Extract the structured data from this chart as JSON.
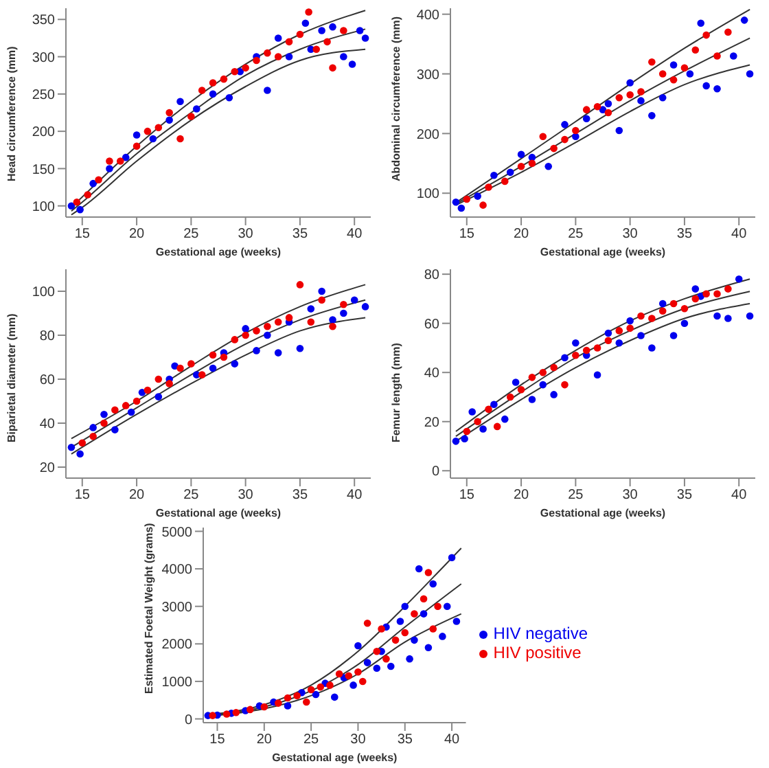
{
  "chart_data": [
    {
      "type": "scatter",
      "xlabel": "Gestational age (weeks)",
      "ylabel": "Head circumference (mm)",
      "xlim": [
        13.5,
        41.5
      ],
      "xticks": [
        15,
        20,
        25,
        30,
        35,
        40
      ],
      "ylim": [
        85,
        365
      ],
      "yticks": [
        100,
        150,
        200,
        250,
        300,
        350
      ],
      "marker": "circle",
      "series": [
        {
          "color": "#0000ee",
          "x": [
            14,
            14.8,
            16,
            17.5,
            19,
            20,
            21.5,
            23,
            24,
            25.5,
            27,
            28.5,
            29.5,
            31,
            32,
            33,
            34,
            35.5,
            36,
            37,
            38,
            39,
            39.8,
            40.5,
            41
          ],
          "values": [
            100,
            95,
            130,
            150,
            165,
            195,
            190,
            215,
            240,
            230,
            250,
            245,
            280,
            300,
            255,
            325,
            300,
            345,
            310,
            335,
            340,
            300,
            290,
            335,
            325
          ]
        },
        {
          "color": "#ee0000",
          "x": [
            14.5,
            15.5,
            16.5,
            17.5,
            18.5,
            20,
            21,
            22,
            23,
            24,
            25,
            26,
            27,
            28,
            29,
            30,
            31,
            32,
            33,
            34,
            35,
            35.8,
            36.5,
            37.5,
            38,
            39
          ],
          "values": [
            105,
            115,
            135,
            160,
            160,
            180,
            200,
            205,
            225,
            190,
            220,
            255,
            265,
            270,
            280,
            285,
            295,
            305,
            300,
            320,
            330,
            360,
            310,
            320,
            285,
            335
          ]
        },
        {
          "type": "line",
          "marker": "none",
          "color": "#333333",
          "x": [
            14,
            15,
            20,
            25,
            30,
            35,
            41
          ],
          "values": [
            98,
            112,
            180,
            240,
            290,
            330,
            362
          ]
        },
        {
          "type": "line",
          "marker": "none",
          "color": "#333333",
          "x": [
            14,
            15,
            20,
            25,
            30,
            35,
            41
          ],
          "values": [
            93,
            105,
            170,
            225,
            275,
            310,
            337
          ]
        },
        {
          "type": "line",
          "marker": "none",
          "color": "#333333",
          "x": [
            14,
            15,
            20,
            25,
            30,
            35,
            41
          ],
          "values": [
            88,
            98,
            160,
            215,
            260,
            295,
            310
          ]
        }
      ]
    },
    {
      "type": "scatter",
      "xlabel": "Gestational age (weeks)",
      "ylabel": "Abdominal circumference (mm)",
      "xlim": [
        13.5,
        41.5
      ],
      "xticks": [
        15,
        20,
        25,
        30,
        35,
        40
      ],
      "ylim": [
        60,
        410
      ],
      "yticks": [
        100,
        200,
        300,
        400
      ],
      "marker": "circle",
      "series": [
        {
          "color": "#0000ee",
          "x": [
            14,
            14.5,
            16,
            17.5,
            19,
            20,
            21,
            22.5,
            24,
            25,
            26,
            27.5,
            28,
            29,
            30,
            31,
            32,
            33,
            34,
            35.5,
            36.5,
            37,
            38,
            39.5,
            40.5,
            41
          ],
          "values": [
            85,
            75,
            95,
            130,
            135,
            165,
            160,
            145,
            215,
            195,
            225,
            240,
            250,
            205,
            285,
            255,
            230,
            260,
            315,
            300,
            385,
            280,
            275,
            330,
            390,
            300
          ]
        },
        {
          "color": "#ee0000",
          "x": [
            15,
            16.5,
            17,
            18.5,
            20,
            21,
            22,
            23,
            24,
            25,
            26,
            27,
            28,
            29,
            30,
            31,
            32,
            33,
            34,
            35,
            36,
            37,
            38,
            39
          ],
          "values": [
            90,
            80,
            110,
            120,
            145,
            150,
            195,
            175,
            190,
            205,
            240,
            245,
            235,
            260,
            265,
            270,
            320,
            300,
            290,
            310,
            340,
            365,
            330,
            370
          ]
        },
        {
          "type": "line",
          "marker": "none",
          "color": "#333333",
          "x": [
            14,
            20,
            25,
            30,
            35,
            41
          ],
          "values": [
            84,
            158,
            220,
            283,
            343,
            408
          ]
        },
        {
          "type": "line",
          "marker": "none",
          "color": "#333333",
          "x": [
            14,
            20,
            25,
            30,
            35,
            41
          ],
          "values": [
            82,
            145,
            200,
            255,
            305,
            360
          ]
        },
        {
          "type": "line",
          "marker": "none",
          "color": "#333333",
          "x": [
            14,
            20,
            25,
            30,
            35,
            41
          ],
          "values": [
            80,
            135,
            185,
            237,
            282,
            315
          ]
        }
      ]
    },
    {
      "type": "scatter",
      "xlabel": "Gestational age (weeks)",
      "ylabel": "Biparietal diameter (mm)",
      "xlim": [
        13.5,
        41.5
      ],
      "xticks": [
        15,
        20,
        25,
        30,
        35,
        40
      ],
      "ylim": [
        15,
        110
      ],
      "yticks": [
        20,
        40,
        60,
        80,
        100
      ],
      "marker": "circle",
      "series": [
        {
          "color": "#0000ee",
          "x": [
            14,
            14.8,
            16,
            17,
            18,
            19.5,
            20.5,
            22,
            23,
            23.5,
            25.5,
            27,
            28,
            29,
            30,
            31,
            32,
            33,
            34,
            35,
            36,
            37,
            38,
            39,
            40,
            41
          ],
          "values": [
            29,
            26,
            38,
            44,
            37,
            45,
            54,
            52,
            60,
            66,
            62,
            65,
            72,
            67,
            83,
            73,
            80,
            72,
            86,
            74,
            92,
            100,
            87,
            90,
            96,
            93
          ]
        },
        {
          "color": "#ee0000",
          "x": [
            15,
            16,
            17,
            18,
            19,
            20,
            21,
            22,
            23,
            24,
            25,
            26,
            27,
            28,
            29,
            30,
            31,
            32,
            33,
            34,
            35,
            36,
            37,
            38,
            39
          ],
          "values": [
            31,
            34,
            40,
            46,
            48,
            50,
            55,
            60,
            58,
            65,
            67,
            62,
            71,
            70,
            78,
            80,
            82,
            84,
            86,
            88,
            103,
            86,
            96,
            84,
            94
          ]
        },
        {
          "type": "line",
          "marker": "none",
          "color": "#333333",
          "x": [
            14,
            20,
            25,
            30,
            35,
            41
          ],
          "values": [
            33,
            50,
            66,
            81,
            93,
            103
          ]
        },
        {
          "type": "line",
          "marker": "none",
          "color": "#333333",
          "x": [
            14,
            20,
            25,
            30,
            35,
            41
          ],
          "values": [
            29,
            47,
            62,
            76,
            87,
            96
          ]
        },
        {
          "type": "line",
          "marker": "none",
          "color": "#333333",
          "x": [
            14,
            20,
            25,
            30,
            35,
            41
          ],
          "values": [
            26,
            44,
            58,
            71,
            82,
            88
          ]
        }
      ]
    },
    {
      "type": "scatter",
      "xlabel": "Gestational age (weeks)",
      "ylabel": "Femur length (mm)",
      "xlim": [
        13.5,
        41.5
      ],
      "xticks": [
        15,
        20,
        25,
        30,
        35,
        40
      ],
      "ylim": [
        -3,
        82
      ],
      "yticks": [
        0,
        20,
        40,
        60,
        80
      ],
      "marker": "circle",
      "series": [
        {
          "color": "#0000ee",
          "x": [
            14,
            14.8,
            15.5,
            16.5,
            17.5,
            18.5,
            19.5,
            21,
            22,
            23,
            24,
            25,
            26,
            27,
            28,
            29,
            30,
            31,
            32,
            33,
            34,
            35,
            36,
            36.5,
            38,
            39,
            40,
            41
          ],
          "values": [
            12,
            13,
            24,
            17,
            27,
            21,
            36,
            29,
            35,
            31,
            46,
            52,
            47,
            39,
            56,
            52,
            61,
            55,
            50,
            68,
            55,
            60,
            74,
            71,
            63,
            62,
            78,
            63
          ]
        },
        {
          "color": "#ee0000",
          "x": [
            15,
            16,
            17,
            17.8,
            19,
            20,
            21,
            22,
            23,
            24,
            25,
            26,
            27,
            28,
            29,
            30,
            31,
            32,
            33,
            34,
            35,
            36,
            37,
            38,
            39
          ],
          "values": [
            16,
            20,
            25,
            18,
            30,
            33,
            38,
            40,
            42,
            35,
            47,
            49,
            50,
            53,
            57,
            58,
            63,
            62,
            65,
            68,
            66,
            70,
            72,
            72,
            74
          ]
        },
        {
          "type": "line",
          "marker": "none",
          "color": "#333333",
          "x": [
            14,
            20,
            25,
            30,
            35,
            41
          ],
          "values": [
            16,
            35,
            49,
            61,
            70,
            78
          ]
        },
        {
          "type": "line",
          "marker": "none",
          "color": "#333333",
          "x": [
            14,
            20,
            25,
            30,
            35,
            41
          ],
          "values": [
            14,
            32,
            46,
            57,
            66,
            73
          ]
        },
        {
          "type": "line",
          "marker": "none",
          "color": "#333333",
          "x": [
            14,
            20,
            25,
            30,
            35,
            41
          ],
          "values": [
            12,
            29,
            42,
            53,
            62,
            68
          ]
        }
      ]
    },
    {
      "type": "scatter",
      "xlabel": "Gestational age (weeks)",
      "ylabel": "Estimated Foetal Weight (grams)",
      "xlim": [
        13.5,
        41.5
      ],
      "xticks": [
        15,
        20,
        25,
        30,
        35,
        40
      ],
      "ylim": [
        -100,
        5100
      ],
      "yticks": [
        0,
        1000,
        2000,
        3000,
        4000,
        5000
      ],
      "marker": "circle",
      "legend": "right",
      "series": [
        {
          "name": "HIV negative",
          "color": "#0000ee",
          "x": [
            14,
            15,
            16.5,
            18,
            19.5,
            21,
            22.5,
            24,
            25.5,
            26.5,
            27.5,
            28.5,
            29.5,
            30,
            31,
            32,
            32.5,
            33,
            33.5,
            34.5,
            35,
            35.5,
            36,
            36.5,
            37,
            37.5,
            38,
            39,
            39.5,
            40,
            40.5
          ],
          "values": [
            90,
            100,
            150,
            220,
            350,
            450,
            350,
            700,
            650,
            950,
            580,
            1100,
            900,
            1950,
            1500,
            1350,
            1800,
            2450,
            1400,
            2600,
            3000,
            1600,
            2100,
            4000,
            2800,
            1900,
            3600,
            2200,
            3000,
            4300,
            2600
          ]
        },
        {
          "name": "HIV positive",
          "color": "#ee0000",
          "x": [
            14.5,
            16,
            17,
            18.5,
            20,
            21.5,
            22.5,
            23.5,
            24.5,
            25,
            26,
            27,
            28,
            29,
            30,
            30.5,
            31,
            32,
            32.5,
            33,
            34,
            35,
            36,
            37,
            37.5,
            38,
            38.5
          ],
          "values": [
            90,
            130,
            170,
            250,
            320,
            420,
            560,
            620,
            450,
            780,
            850,
            900,
            1200,
            1150,
            1250,
            1000,
            2550,
            1800,
            2400,
            1600,
            2100,
            2300,
            2800,
            3200,
            3900,
            2400,
            3000
          ]
        },
        {
          "type": "line",
          "marker": "none",
          "color": "#333333",
          "x": [
            14,
            20,
            25,
            30,
            35,
            39,
            41
          ],
          "values": [
            110,
            380,
            900,
            1800,
            3000,
            4030,
            4550
          ]
        },
        {
          "type": "line",
          "marker": "none",
          "color": "#333333",
          "x": [
            14,
            20,
            25,
            30,
            35,
            41
          ],
          "values": [
            90,
            320,
            750,
            1450,
            2450,
            3600
          ]
        },
        {
          "type": "line",
          "marker": "none",
          "color": "#333333",
          "x": [
            14,
            20,
            25,
            30,
            35,
            41
          ],
          "values": [
            70,
            270,
            620,
            1200,
            2050,
            2800
          ]
        }
      ]
    }
  ]
}
